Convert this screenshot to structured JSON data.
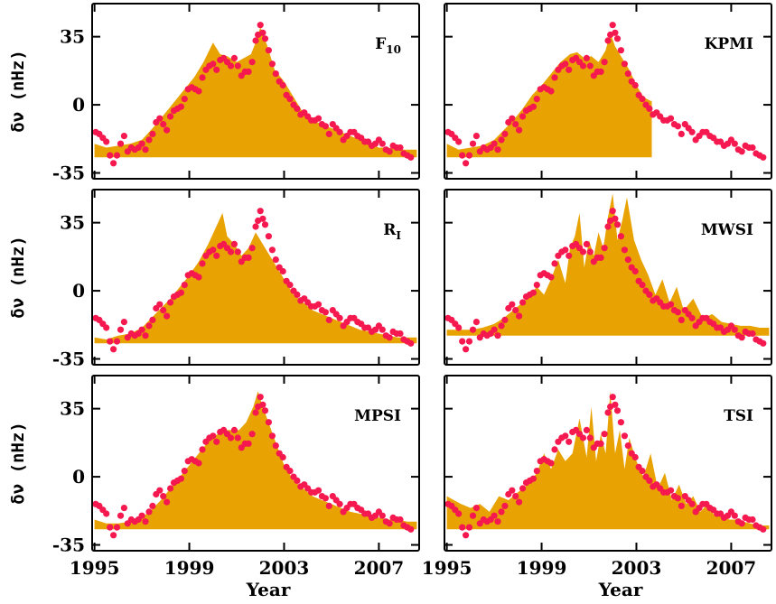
{
  "colors": {
    "area": "#E8A202",
    "points": "#F5194F",
    "axis": "#000000"
  },
  "chart_data": [
    {
      "type": "area",
      "panel_label": "F",
      "panel_label_sub": "10",
      "xlim": [
        1994.9,
        2008.7
      ],
      "ylim": [
        -38,
        52
      ],
      "yticks": [
        -35,
        0,
        35
      ],
      "xticks": [
        1995,
        1999,
        2003,
        2007
      ],
      "ylabel": "δν (nHz)",
      "xlabel": "",
      "area": {
        "x": [
          1995.0,
          1995.5,
          1996.0,
          1996.5,
          1997.0,
          1997.3,
          1997.6,
          1998.0,
          1998.4,
          1998.8,
          1999.2,
          1999.6,
          2000.0,
          2000.3,
          2000.6,
          2001.0,
          2001.3,
          2001.6,
          2001.8,
          2002.0,
          2002.3,
          2002.6,
          2003.0,
          2003.4,
          2003.8,
          2004.2,
          2004.6,
          2005.0,
          2005.4,
          2005.8,
          2006.2,
          2006.6,
          2007.0,
          2007.4,
          2007.8,
          2008.2,
          2008.6
        ],
        "y": [
          -20,
          -22,
          -21,
          -20,
          -18,
          -14,
          -10,
          -4,
          2,
          8,
          14,
          22,
          32,
          26,
          25,
          22,
          24,
          26,
          32,
          40,
          30,
          18,
          12,
          4,
          -4,
          -8,
          -10,
          -12,
          -14,
          -16,
          -18,
          -20,
          -22,
          -22,
          -23,
          -23,
          -23
        ]
      },
      "show_area_to": 2008.6,
      "area_base": -27
    },
    {
      "type": "area",
      "panel_label": "KPMI",
      "panel_label_sub": "",
      "xlim": [
        1994.9,
        2008.7
      ],
      "ylim": [
        -38,
        52
      ],
      "yticks": [
        -35,
        0,
        35
      ],
      "xticks": [
        1995,
        1999,
        2003,
        2007
      ],
      "ylabel": "",
      "xlabel": "",
      "area": {
        "x": [
          1995.0,
          1995.5,
          1996.0,
          1996.5,
          1997.0,
          1997.4,
          1997.8,
          1998.2,
          1998.6,
          1999.0,
          1999.4,
          1999.8,
          2000.2,
          2000.5,
          2000.8,
          2001.1,
          2001.4,
          2001.7,
          2001.9,
          2002.1,
          2002.4,
          2002.7,
          2003.0,
          2003.3,
          2003.6,
          2003.65
        ],
        "y": [
          -20,
          -23,
          -22,
          -21,
          -18,
          -13,
          -8,
          -2,
          5,
          10,
          16,
          22,
          26,
          27,
          24,
          25,
          22,
          28,
          37,
          30,
          24,
          18,
          10,
          4,
          2,
          2
        ]
      },
      "show_area_to": 2003.65,
      "area_base": -27
    },
    {
      "type": "area",
      "panel_label": "R",
      "panel_label_sub": "I",
      "xlim": [
        1994.9,
        2008.7
      ],
      "ylim": [
        -38,
        52
      ],
      "yticks": [
        -35,
        0,
        35
      ],
      "xticks": [
        1995,
        1999,
        2003,
        2007
      ],
      "ylabel": "δν (nHz)",
      "xlabel": "",
      "area": {
        "x": [
          1995.0,
          1995.5,
          1996.0,
          1996.5,
          1997.0,
          1997.4,
          1997.8,
          1998.2,
          1998.6,
          1999.0,
          1999.4,
          1999.8,
          2000.1,
          2000.4,
          2000.6,
          2000.9,
          2001.2,
          2001.5,
          2001.8,
          2002.0,
          2002.3,
          2002.6,
          2003.0,
          2003.4,
          2003.8,
          2004.2,
          2004.6,
          2005.0,
          2005.4,
          2005.8,
          2006.2,
          2006.6,
          2007.0,
          2007.4,
          2007.8,
          2008.2,
          2008.6
        ],
        "y": [
          -24,
          -25,
          -23,
          -22,
          -19,
          -14,
          -9,
          -4,
          2,
          8,
          15,
          24,
          32,
          40,
          28,
          24,
          18,
          22,
          30,
          26,
          20,
          14,
          6,
          -2,
          -6,
          -10,
          -12,
          -14,
          -16,
          -18,
          -20,
          -21,
          -22,
          -23,
          -24,
          -24,
          -24
        ]
      },
      "show_area_to": 2008.6,
      "area_base": -27
    },
    {
      "type": "area",
      "panel_label": "MWSI",
      "panel_label_sub": "",
      "xlim": [
        1994.9,
        2008.7
      ],
      "ylim": [
        -38,
        52
      ],
      "yticks": [
        -35,
        0,
        35
      ],
      "xticks": [
        1995,
        1999,
        2003,
        2007
      ],
      "ylabel": "",
      "xlabel": "",
      "area": {
        "x": [
          1995.0,
          1995.5,
          1996.0,
          1996.5,
          1997.0,
          1997.4,
          1997.8,
          1998.2,
          1998.5,
          1998.8,
          1999.1,
          1999.4,
          1999.7,
          2000.0,
          2000.2,
          2000.4,
          2000.6,
          2000.8,
          2001.0,
          2001.2,
          2001.4,
          2001.6,
          2001.8,
          2002.0,
          2002.2,
          2002.4,
          2002.6,
          2002.9,
          2003.2,
          2003.5,
          2003.8,
          2004.1,
          2004.4,
          2004.7,
          2005.0,
          2005.4,
          2005.8,
          2006.2,
          2006.6,
          2007.0,
          2007.4,
          2007.8,
          2008.2,
          2008.6
        ],
        "y": [
          -20,
          -20,
          -20,
          -19,
          -17,
          -14,
          -10,
          -6,
          -2,
          2,
          -2,
          6,
          16,
          4,
          22,
          28,
          40,
          12,
          26,
          18,
          30,
          22,
          38,
          50,
          26,
          36,
          48,
          26,
          16,
          8,
          -2,
          6,
          -6,
          2,
          -10,
          -4,
          -14,
          -12,
          -16,
          -17,
          -18,
          -18,
          -19,
          -19
        ]
      },
      "show_area_to": 2008.6,
      "area_base": -23
    },
    {
      "type": "area",
      "panel_label": "MPSI",
      "panel_label_sub": "",
      "xlim": [
        1994.9,
        2008.7
      ],
      "ylim": [
        -38,
        52
      ],
      "yticks": [
        -35,
        0,
        35
      ],
      "xticks": [
        1995,
        1999,
        2003,
        2007
      ],
      "ylabel": "δν (nHz)",
      "xlabel": "Year",
      "area": {
        "x": [
          1995.0,
          1995.5,
          1996.0,
          1996.5,
          1997.0,
          1997.4,
          1997.8,
          1998.2,
          1998.6,
          1999.0,
          1999.4,
          1999.8,
          2000.2,
          2000.5,
          2000.8,
          2001.1,
          2001.4,
          2001.7,
          2001.9,
          2002.1,
          2002.4,
          2002.7,
          2003.0,
          2003.4,
          2003.8,
          2004.2,
          2004.6,
          2005.0,
          2005.4,
          2005.8,
          2006.2,
          2006.6,
          2007.0,
          2007.4,
          2007.8,
          2008.2,
          2008.6
        ],
        "y": [
          -22,
          -24,
          -24,
          -23,
          -21,
          -17,
          -12,
          -6,
          0,
          6,
          12,
          18,
          22,
          24,
          24,
          24,
          28,
          36,
          44,
          36,
          26,
          16,
          6,
          -2,
          -6,
          -10,
          -12,
          -14,
          -16,
          -18,
          -19,
          -20,
          -21,
          -22,
          -22,
          -23,
          -23
        ]
      },
      "show_area_to": 2008.6,
      "area_base": -27
    },
    {
      "type": "area",
      "panel_label": "TSI",
      "panel_label_sub": "",
      "xlim": [
        1994.9,
        2008.7
      ],
      "ylim": [
        -38,
        52
      ],
      "yticks": [
        -35,
        0,
        35
      ],
      "xticks": [
        1995,
        1999,
        2003,
        2007
      ],
      "ylabel": "",
      "xlabel": "Year",
      "area": {
        "x": [
          1995.0,
          1995.3,
          1995.6,
          1996.0,
          1996.4,
          1996.8,
          1997.2,
          1997.6,
          1998.0,
          1998.4,
          1998.8,
          1999.1,
          1999.4,
          1999.7,
          2000.0,
          2000.3,
          2000.6,
          2000.9,
          2001.1,
          2001.3,
          2001.5,
          2001.7,
          2001.9,
          2002.1,
          2002.3,
          2002.5,
          2002.7,
          2003.0,
          2003.3,
          2003.6,
          2003.9,
          2004.2,
          2004.5,
          2004.8,
          2005.1,
          2005.4,
          2005.7,
          2006.0,
          2006.3,
          2006.6,
          2006.9,
          2007.2,
          2007.5,
          2007.8,
          2008.2,
          2008.6
        ],
        "y": [
          -10,
          -12,
          -14,
          -16,
          -14,
          -18,
          -10,
          -12,
          -8,
          -4,
          2,
          12,
          4,
          14,
          8,
          12,
          30,
          10,
          36,
          8,
          22,
          12,
          44,
          12,
          24,
          4,
          20,
          8,
          0,
          12,
          -6,
          2,
          -12,
          -4,
          -14,
          -10,
          -18,
          -14,
          -20,
          -18,
          -22,
          -22,
          -23,
          -24,
          -25,
          -25
        ]
      },
      "show_area_to": 2008.6,
      "area_base": -27
    }
  ],
  "points": {
    "x": [
      1995.05,
      1995.2,
      1995.35,
      1995.5,
      1995.65,
      1995.8,
      1995.95,
      1996.1,
      1996.25,
      1996.4,
      1996.55,
      1996.7,
      1996.85,
      1997.0,
      1997.15,
      1997.3,
      1997.45,
      1997.6,
      1997.75,
      1997.9,
      1998.05,
      1998.2,
      1998.35,
      1998.5,
      1998.65,
      1998.8,
      1998.95,
      1999.1,
      1999.25,
      1999.4,
      1999.55,
      1999.7,
      1999.85,
      2000.0,
      2000.15,
      2000.3,
      2000.45,
      2000.6,
      2000.75,
      2000.9,
      2001.05,
      2001.2,
      2001.35,
      2001.5,
      2001.65,
      2001.8,
      2001.9,
      2002.0,
      2002.1,
      2002.2,
      2002.35,
      2002.5,
      2002.65,
      2002.8,
      2002.95,
      2003.1,
      2003.25,
      2003.4,
      2003.55,
      2003.7,
      2003.85,
      2004.0,
      2004.15,
      2004.3,
      2004.45,
      2004.6,
      2004.75,
      2004.9,
      2005.05,
      2005.2,
      2005.35,
      2005.5,
      2005.65,
      2005.8,
      2005.95,
      2006.1,
      2006.25,
      2006.4,
      2006.55,
      2006.7,
      2006.85,
      2007.0,
      2007.15,
      2007.3,
      2007.45,
      2007.6,
      2007.75,
      2007.9,
      2008.05,
      2008.2,
      2008.35
    ],
    "y": [
      -14,
      -15,
      -17,
      -19,
      -26,
      -30,
      -26,
      -20,
      -16,
      -24,
      -22,
      -23,
      -22,
      -20,
      -23,
      -18,
      -15,
      -9,
      -7,
      -10,
      -13,
      -6,
      -3,
      -2,
      -1,
      3,
      8,
      9,
      8,
      7,
      14,
      18,
      20,
      21,
      18,
      23,
      24,
      22,
      20,
      24,
      20,
      15,
      17,
      17,
      22,
      33,
      36,
      41,
      37,
      34,
      28,
      21,
      16,
      12,
      10,
      5,
      3,
      0,
      -2,
      -5,
      -4,
      -6,
      -8,
      -8,
      -7,
      -10,
      -11,
      -15,
      -10,
      -12,
      -14,
      -18,
      -16,
      -14,
      -14,
      -16,
      -17,
      -19,
      -19,
      -21,
      -20,
      -18,
      -20,
      -23,
      -24,
      -21,
      -22,
      -22,
      -25,
      -26,
      -27
    ]
  }
}
